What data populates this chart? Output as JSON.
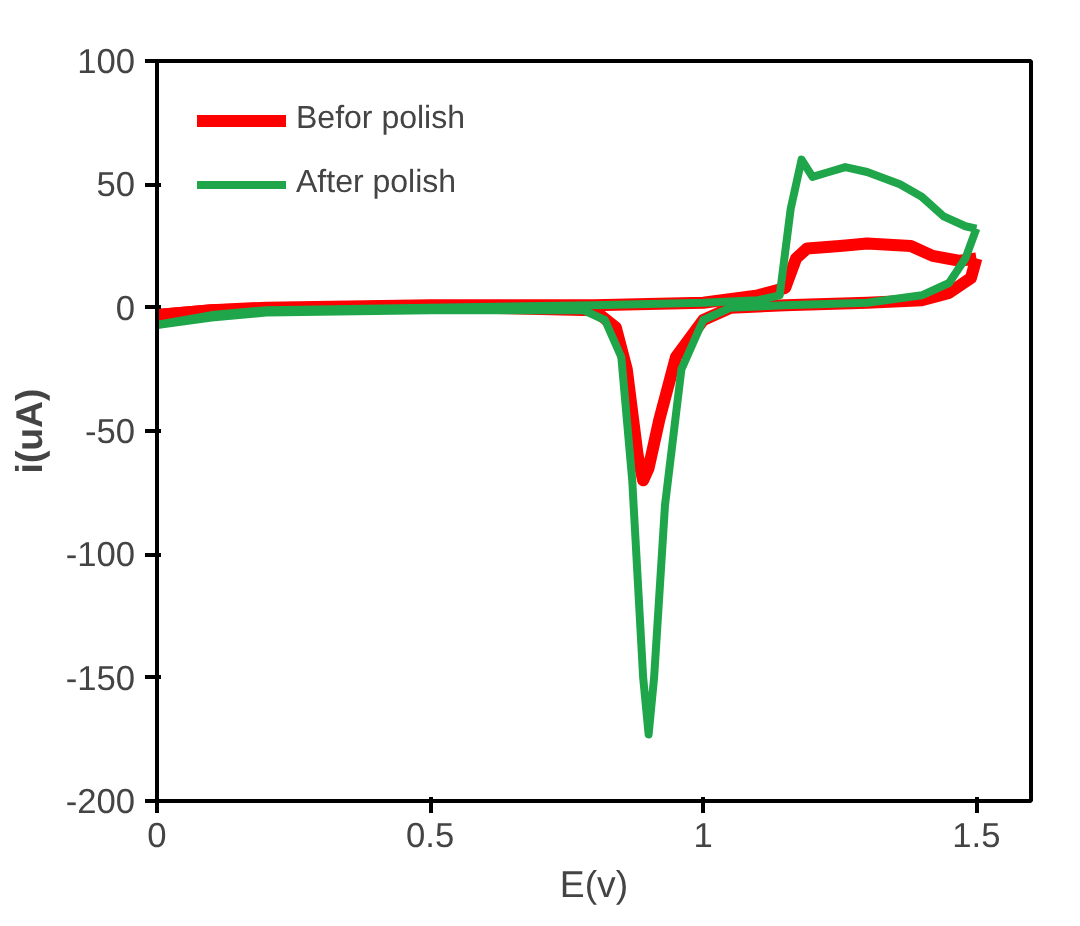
{
  "chart_data": {
    "type": "line",
    "xlabel": "E(v)",
    "ylabel": "i(uA)",
    "xlim": [
      0,
      1.6
    ],
    "xticks": [
      0,
      0.5,
      1,
      1.5
    ],
    "ylim": [
      -200,
      100
    ],
    "yticks": [
      -200,
      -150,
      -100,
      -50,
      0,
      50,
      100
    ],
    "grid": false,
    "legend": "top left",
    "marker": "none",
    "line_style": "solid",
    "series": [
      {
        "name": "Befor polish",
        "color": "#ff0000",
        "x": [
          0,
          0.1,
          0.2,
          0.5,
          0.8,
          1.0,
          1.1,
          1.15,
          1.17,
          1.19,
          1.25,
          1.3,
          1.38,
          1.42,
          1.47,
          1.5
        ],
        "values": [
          -3,
          -1,
          0,
          1,
          1,
          2,
          5,
          8,
          20,
          24,
          25,
          26,
          25,
          21,
          19,
          20
        ]
      },
      {
        "color": "#ff0000",
        "x": [
          1.5,
          1.49,
          1.45,
          1.4,
          1.3,
          1.15,
          1.05,
          1.0,
          0.95,
          0.92,
          0.9,
          0.89,
          0.88,
          0.86,
          0.84,
          0.8,
          0.6,
          0.3,
          0.1,
          0
        ],
        "values": [
          20,
          12,
          6,
          3,
          2,
          1,
          0,
          -5,
          -20,
          -45,
          -65,
          -70,
          -60,
          -25,
          -8,
          -1,
          0,
          0,
          -1,
          -3
        ]
      },
      {
        "name": "After polish",
        "color": "#1fa64a",
        "x": [
          0,
          0.1,
          0.2,
          0.5,
          0.8,
          1.0,
          1.1,
          1.14,
          1.16,
          1.18,
          1.2,
          1.23,
          1.26,
          1.3,
          1.36,
          1.4,
          1.44,
          1.48,
          1.5
        ],
        "values": [
          -7,
          -3,
          -1,
          0,
          1,
          2,
          3,
          5,
          40,
          60,
          53,
          55,
          57,
          55,
          50,
          45,
          37,
          33,
          32
        ]
      },
      {
        "color": "#1fa64a",
        "x": [
          1.5,
          1.48,
          1.45,
          1.4,
          1.3,
          1.15,
          1.05,
          1.0,
          0.96,
          0.93,
          0.91,
          0.9,
          0.89,
          0.87,
          0.85,
          0.82,
          0.78,
          0.5,
          0.2,
          0.1,
          0
        ],
        "values": [
          32,
          20,
          10,
          5,
          2,
          1,
          0,
          -5,
          -25,
          -80,
          -150,
          -173,
          -150,
          -70,
          -20,
          -5,
          -1,
          -1,
          -2,
          -4,
          -7
        ]
      }
    ]
  }
}
